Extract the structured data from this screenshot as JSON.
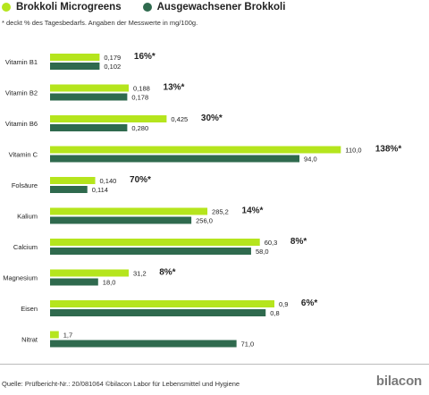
{
  "legend": [
    {
      "name": "Brokkoli Microgreens",
      "color": "#b5e51d"
    },
    {
      "name": "Ausgewachsener Brokkoli",
      "color": "#2f6a4e"
    }
  ],
  "subtitle": "* deckt % des Tagesbedarfs. Angaben der Messwerte in mg/100g.",
  "source": "Quelle: Prüfbericht-Nr.: 20/081064 ©bilacon Labor für Lebensmittel und Hygiene",
  "brand": "bilacon",
  "chart_data": {
    "type": "bar",
    "orientation": "horizontal",
    "categories": [
      "Vitamin B1",
      "Vitamin B2",
      "Vitamin B6",
      "Vitamin C",
      "Folsäure",
      "Kalium",
      "Calcium",
      "Magnesium",
      "Eisen",
      "Nitrat"
    ],
    "series": [
      {
        "name": "Brokkoli Microgreens",
        "color": "#b5e51d",
        "values": [
          0.179,
          0.188,
          0.425,
          110.0,
          0.14,
          285.2,
          60.3,
          31.2,
          0.9,
          1.7
        ],
        "labels": [
          "0,179",
          "0,188",
          "0,425",
          "110,0",
          "0,140",
          "285,2",
          "60,3",
          "31,2",
          "0,9",
          "1,7"
        ]
      },
      {
        "name": "Ausgewachsener Brokkoli",
        "color": "#2f6a4e",
        "values": [
          0.102,
          0.178,
          0.28,
          94.0,
          0.114,
          256.0,
          58.0,
          18.0,
          0.8,
          71.0
        ],
        "labels": [
          "0,102",
          "0,178",
          "0,280",
          "94,0",
          "0,114",
          "256,0",
          "58,0",
          "18,0",
          "0,8",
          "71,0"
        ]
      }
    ],
    "percent_labels": [
      "16%*",
      "13%*",
      "30%*",
      "138%*",
      "70%*",
      "14%*",
      "8%*",
      "8%*",
      "6%*",
      ""
    ],
    "bar_lengths_relative": [
      [
        0.17,
        0.17
      ],
      [
        0.27,
        0.265
      ],
      [
        0.4,
        0.265
      ],
      [
        0.998,
        0.856
      ],
      [
        0.155,
        0.128
      ],
      [
        0.54,
        0.485
      ],
      [
        0.72,
        0.69
      ],
      [
        0.27,
        0.165
      ],
      [
        0.77,
        0.74
      ],
      [
        0.03,
        0.64
      ]
    ],
    "axes_visible": false,
    "grid": false,
    "legend_position": "top-left"
  }
}
